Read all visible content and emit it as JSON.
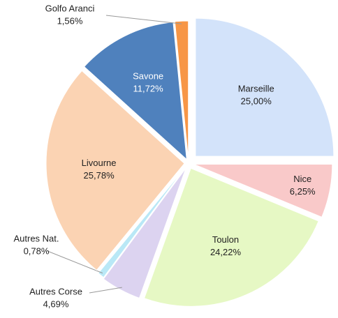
{
  "chart_data": {
    "type": "pie",
    "categories": [
      "Marseille",
      "Nice",
      "Toulon",
      "Autres Corse",
      "Autres Nat.",
      "Livourne",
      "Savone",
      "Golfo Aranci"
    ],
    "values": [
      25,
      6.25,
      24.22,
      4.69,
      0.78,
      25.78,
      11.72,
      1.56
    ],
    "value_labels": [
      "25,00%",
      "6,25%",
      "24,22%",
      "4,69%",
      "0,78%",
      "25,78%",
      "11,72%",
      "1,56%"
    ],
    "colors": [
      "#d3e3fa",
      "#f9c9c9",
      "#e6f8c4",
      "#dcd3f0",
      "#b9e8f6",
      "#fbd3b3",
      "#4f81bd",
      "#f79646"
    ]
  }
}
